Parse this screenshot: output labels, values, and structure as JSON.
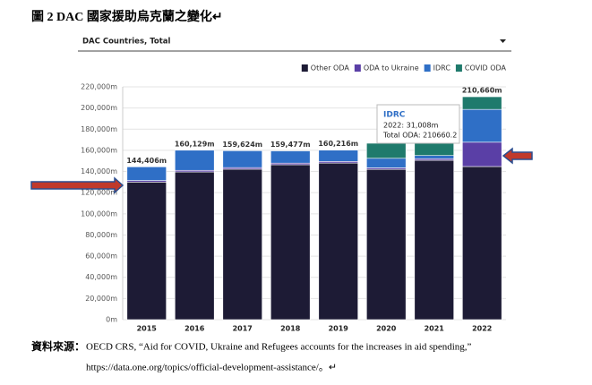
{
  "caption": "圖 2  DAC 國家援助烏克蘭之變化↵",
  "dropdown": "DAC Countries, Total",
  "chart_data": {
    "type": "stacked_bar",
    "categories": [
      "2015",
      "2016",
      "2017",
      "2018",
      "2019",
      "2020",
      "2021",
      "2022"
    ],
    "series": [
      {
        "name": "Other ODA",
        "color": "#1d1b35",
        "values": [
          130000,
          139600,
          142200,
          146400,
          148000,
          142000,
          150600,
          144700
        ]
      },
      {
        "name": "ODA to Ukraine",
        "color": "#5a3fa6",
        "values": [
          1500,
          1500,
          1500,
          1500,
          1500,
          1500,
          1500,
          23000
        ]
      },
      {
        "name": "IDRC",
        "color": "#2f6fc6",
        "values": [
          12906,
          19029,
          15924,
          11577,
          10716,
          9000,
          3000,
          31008
        ]
      },
      {
        "name": "COVID ODA",
        "color": "#1f7a6c",
        "values": [
          0,
          0,
          0,
          0,
          0,
          14200,
          11600,
          11952
        ]
      }
    ],
    "total_labels": [
      "144,406m",
      "160,129m",
      "159,624m",
      "159,477m",
      "160,216m",
      null,
      null,
      "210,660m"
    ],
    "ylim": [
      0,
      220000
    ],
    "yticks": [
      {
        "value": 0,
        "label": "0m"
      },
      {
        "value": 20000,
        "label": "20,000m"
      },
      {
        "value": 40000,
        "label": "40,000m"
      },
      {
        "value": 60000,
        "label": "60,000m"
      },
      {
        "value": 80000,
        "label": "80,000m"
      },
      {
        "value": 100000,
        "label": "100,000m"
      },
      {
        "value": 120000,
        "label": "120,000m"
      },
      {
        "value": 140000,
        "label": "140,000m"
      },
      {
        "value": 160000,
        "label": "160,000m"
      },
      {
        "value": 180000,
        "label": "180,000m"
      },
      {
        "value": 200000,
        "label": "200,000m"
      },
      {
        "value": 220000,
        "label": "220,000m"
      }
    ],
    "grid": true,
    "legend": "top-right",
    "tooltip": {
      "title": "IDRC",
      "line1": "2022: 31,008m",
      "line2": "Total ODA: 210660.2"
    }
  },
  "source": {
    "label": "資料來源：",
    "line1": "OECD CRS, “Aid for COVID, Ukraine and Refugees accounts for the increases in aid spending,”",
    "line2": "https://data.one.org/topics/official-development-assistance/。↵"
  }
}
